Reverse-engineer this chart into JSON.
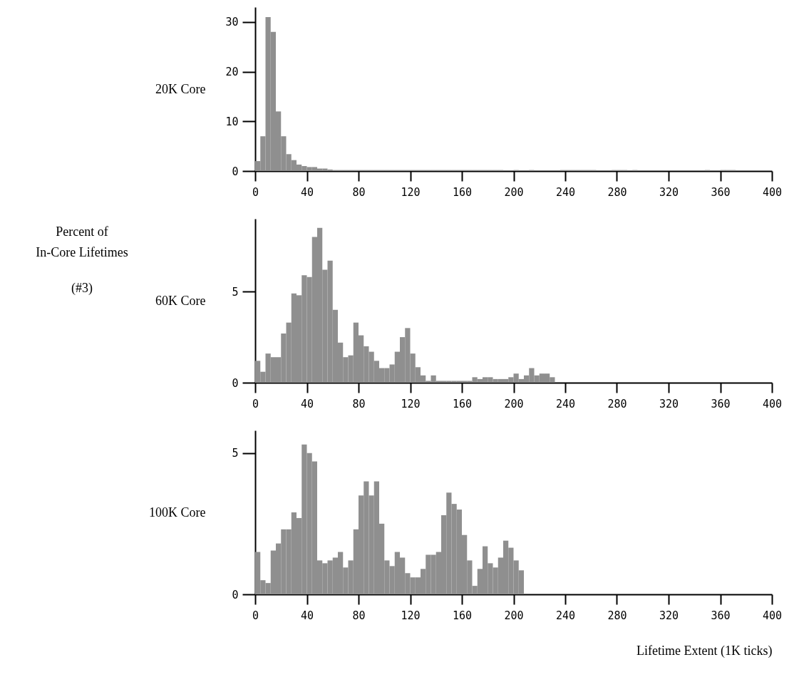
{
  "chart_data": [
    {
      "type": "histogram",
      "ylabel": "20K Core",
      "color": "#8f8f8f",
      "bins": [
        0,
        4,
        8,
        12,
        16,
        20,
        24,
        28,
        32,
        36,
        40,
        44,
        48,
        52,
        56,
        60,
        64,
        68,
        72,
        76,
        80,
        84,
        88,
        92,
        96,
        100,
        104,
        108,
        112,
        116,
        120,
        124,
        128,
        132,
        136,
        140,
        144,
        148,
        152,
        156,
        160,
        164,
        168,
        172,
        176,
        180,
        184,
        188,
        192,
        196,
        200,
        204,
        208,
        212,
        216,
        220,
        224,
        228,
        232,
        236,
        240,
        244,
        248,
        252,
        256,
        260,
        264,
        268,
        272,
        276,
        280,
        284,
        288,
        292,
        296,
        300,
        304,
        308,
        312,
        316,
        320,
        324,
        328,
        332,
        336,
        340,
        344,
        348,
        352,
        356,
        360,
        364,
        368,
        372,
        376,
        380,
        384,
        388,
        392,
        396,
        400
      ],
      "values": [
        2,
        7,
        31,
        28,
        12,
        7,
        3.4,
        2.2,
        1.3,
        1,
        0.8,
        0.8,
        0.5,
        0.5,
        0.3,
        0.2,
        0.2,
        0.2,
        0.2,
        0.2,
        0.2,
        0.2,
        0.2,
        0.2,
        0.2,
        0.2,
        0.2,
        0.2,
        0.2,
        0.2,
        0.2,
        0.2,
        0.2,
        0.2,
        0.2,
        0.2,
        0.2,
        0.2,
        0.2,
        0.2,
        0.2,
        0.2,
        0.2,
        0.2,
        0.2,
        0.2,
        0.2,
        0.2,
        0,
        0,
        0.2,
        0,
        0,
        0.2,
        0,
        0,
        0,
        0,
        0,
        0.2,
        0.2,
        0.2,
        0.2,
        0.2,
        0.2,
        0.2,
        0,
        0,
        0,
        0.2,
        0.2,
        0.2,
        0,
        0.2,
        0,
        0,
        0,
        0,
        0,
        0,
        0,
        0,
        0,
        0,
        0,
        0,
        0,
        0.2,
        0,
        0,
        0.2,
        0.2,
        0.2,
        0,
        0,
        0,
        0,
        0,
        0,
        0
      ],
      "xlim": [
        0,
        400
      ],
      "xticks": [
        0,
        40,
        80,
        120,
        160,
        200,
        240,
        280,
        320,
        360,
        400
      ],
      "ylim": [
        0,
        33
      ],
      "yticks": [
        0,
        10,
        20,
        30
      ]
    },
    {
      "type": "histogram",
      "ylabel": "60K Core",
      "color": "#8f8f8f",
      "annotations": [
        "Percent of",
        "In-Core Lifetimes",
        "(#3)"
      ],
      "bins": [
        0,
        4,
        8,
        12,
        16,
        20,
        24,
        28,
        32,
        36,
        40,
        44,
        48,
        52,
        56,
        60,
        64,
        68,
        72,
        76,
        80,
        84,
        88,
        92,
        96,
        100,
        104,
        108,
        112,
        116,
        120,
        124,
        128,
        132,
        136,
        140,
        144,
        148,
        152,
        156,
        160,
        164,
        168,
        172,
        176,
        180,
        184,
        188,
        192,
        196,
        200,
        204,
        208,
        212,
        216,
        220,
        224,
        228,
        232
      ],
      "values": [
        1.2,
        0.6,
        1.6,
        1.4,
        1.4,
        2.7,
        3.3,
        4.9,
        4.8,
        5.9,
        5.8,
        8.0,
        8.5,
        6.2,
        6.7,
        4.0,
        2.2,
        1.4,
        1.5,
        3.3,
        2.6,
        2.0,
        1.7,
        1.2,
        0.8,
        0.8,
        1.0,
        1.7,
        2.5,
        3.0,
        1.6,
        0.85,
        0.4,
        0.1,
        0.4,
        0.1,
        0.1,
        0.1,
        0.1,
        0.1,
        0.1,
        0.1,
        0.3,
        0.2,
        0.3,
        0.3,
        0.2,
        0.2,
        0.2,
        0.3,
        0.5,
        0.2,
        0.4,
        0.8,
        0.4,
        0.5,
        0.5,
        0.3
      ],
      "xlim": [
        0,
        400
      ],
      "xticks": [
        0,
        40,
        80,
        120,
        160,
        200,
        240,
        280,
        320,
        360,
        400
      ],
      "ylim": [
        0,
        9
      ],
      "yticks": [
        0,
        5
      ]
    },
    {
      "type": "histogram",
      "ylabel": "100K Core",
      "xlabel": "Lifetime Extent (1K ticks)",
      "color": "#8f8f8f",
      "bins": [
        0,
        4,
        8,
        12,
        16,
        20,
        24,
        28,
        32,
        36,
        40,
        44,
        48,
        52,
        56,
        60,
        64,
        68,
        72,
        76,
        80,
        84,
        88,
        92,
        96,
        100,
        104,
        108,
        112,
        116,
        120,
        124,
        128,
        132,
        136,
        140,
        144,
        148,
        152,
        156,
        160,
        164,
        168,
        172,
        176,
        180,
        184,
        188,
        192,
        196,
        200,
        204,
        208
      ],
      "values": [
        1.5,
        0.5,
        0.4,
        1.55,
        1.8,
        2.3,
        2.3,
        2.9,
        2.7,
        5.3,
        5.0,
        4.7,
        1.2,
        1.1,
        1.2,
        1.3,
        1.5,
        0.95,
        1.2,
        2.3,
        3.5,
        4.0,
        3.5,
        4.0,
        2.5,
        1.2,
        1.0,
        1.5,
        1.3,
        0.75,
        0.6,
        0.6,
        0.9,
        1.4,
        1.4,
        1.5,
        2.8,
        3.6,
        3.2,
        3.0,
        2.1,
        1.2,
        0.3,
        0.9,
        1.7,
        1.1,
        0.95,
        1.3,
        1.9,
        1.65,
        1.2,
        0.85
      ],
      "xlim": [
        0,
        400
      ],
      "xticks": [
        0,
        40,
        80,
        120,
        160,
        200,
        240,
        280,
        320,
        360,
        400
      ],
      "ylim": [
        0,
        5.8
      ],
      "yticks": [
        0,
        5
      ]
    }
  ]
}
